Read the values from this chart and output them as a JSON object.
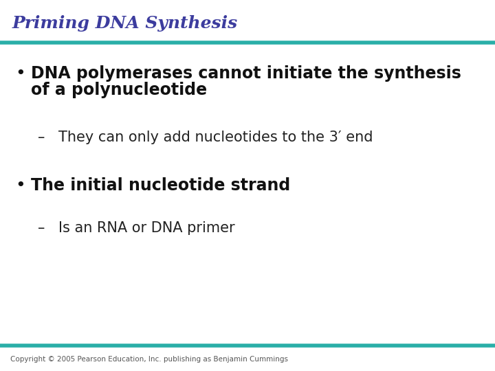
{
  "title": "Priming DNA Synthesis",
  "title_color": "#3c3c9e",
  "title_fontsize": 18,
  "bg_color": "#ffffff",
  "line_color": "#2aafa8",
  "bullet1_line1": "DNA polymerases cannot initiate the synthesis",
  "bullet1_line2": "of a polynucleotide",
  "sub1": "They can only add nucleotides to the 3′ end",
  "bullet2": "The initial nucleotide strand",
  "sub2": "Is an RNA or DNA primer",
  "bullet_fontsize": 17,
  "sub_fontsize": 15,
  "copyright": "Copyright © 2005 Pearson Education, Inc. publishing as Benjamin Cummings",
  "copyright_fontsize": 7.5,
  "bullet_color": "#111111",
  "sub_color": "#222222",
  "dot_color": "#111111"
}
